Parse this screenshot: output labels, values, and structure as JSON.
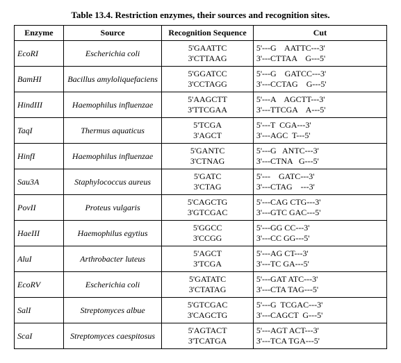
{
  "caption": "Table 13.4. Restriction enzymes, their sources and recognition sites.",
  "headers": {
    "enzyme": "Enzyme",
    "source": "Source",
    "seq": "Recognition Sequence",
    "cut": "Cut"
  },
  "rows": [
    {
      "enzyme": "EcoRI",
      "source": "Escherichia coli",
      "seq1": "5'GAATTC",
      "seq2": "3'CTTAAG",
      "cut1": "5'---G    AATTC---3'",
      "cut2": "3'---CTTAA    G---5'"
    },
    {
      "enzyme": "BamHI",
      "source": "Bacillus amyloliquefaciens",
      "seq1": "5'GGATCC",
      "seq2": "3'CCTAGG",
      "cut1": "5'---G    GATCC---3'",
      "cut2": "3'---CCTAG    G---5'"
    },
    {
      "enzyme": "HindIII",
      "source": "Haemophilus influenzae",
      "seq1": "5'AAGCTT",
      "seq2": "3'TTCGAA",
      "cut1": "5'---A    AGCTT---3'",
      "cut2": "3'---TTCGA    A---5'"
    },
    {
      "enzyme": "TaqI",
      "source": "Thermus aquaticus",
      "seq1": "5'TCGA",
      "seq2": "3'AGCT",
      "cut1": "5'---T  CGA---3'",
      "cut2": "3'---AGC  T---5'"
    },
    {
      "enzyme": "HinfI",
      "source": "Haemophilus influenzae",
      "seq1": "5'GANTC",
      "seq2": "3'CTNAG",
      "cut1": "5'---G   ANTC---3'",
      "cut2": "3'---CTNA   G---5'"
    },
    {
      "enzyme": "Sau3A",
      "source": "Staphylococcus aureus",
      "seq1": "5'GATC",
      "seq2": "3'CTAG",
      "cut1": "5'---    GATC---3'",
      "cut2": "3'---CTAG    ---3'"
    },
    {
      "enzyme": "PovII",
      "source": "Proteus vulgaris",
      "seq1": "5'CAGCTG",
      "seq2": "3'GTCGAC",
      "cut1": "5'---CAG CTG---3'",
      "cut2": "3'---GTC GAC---5'"
    },
    {
      "enzyme": "HaeIII",
      "source": "Haemophilus egytius",
      "seq1": "5'GGCC",
      "seq2": "3'CCGG",
      "cut1": "5'---GG CC---3'",
      "cut2": "3'---CC GG---5'"
    },
    {
      "enzyme": "AluI",
      "source": "Arthrobacter luteus",
      "seq1": "5'AGCT",
      "seq2": "3'TCGA",
      "cut1": "5'---AG CT---3'",
      "cut2": "3'---TC GA---5'"
    },
    {
      "enzyme": "EcoRV",
      "source": "Escherichia coli",
      "seq1": "5'GATATC",
      "seq2": "3'CTATAG",
      "cut1": "5'---GAT ATC---3'",
      "cut2": "3'---CTA TAG---5'"
    },
    {
      "enzyme": "SalI",
      "source": "Streptomyces albue",
      "seq1": "5'GTCGAC",
      "seq2": "3'CAGCTG",
      "cut1": "5'---G  TCGAC---3'",
      "cut2": "3'---CAGCT  G---5'"
    },
    {
      "enzyme": "ScaI",
      "source": "Streptomyces caespitosus",
      "seq1": "5'AGTACT",
      "seq2": "3'TCATGA",
      "cut1": "5'---AGT ACT---3'",
      "cut2": "3'---TCA TGA---5'"
    }
  ]
}
